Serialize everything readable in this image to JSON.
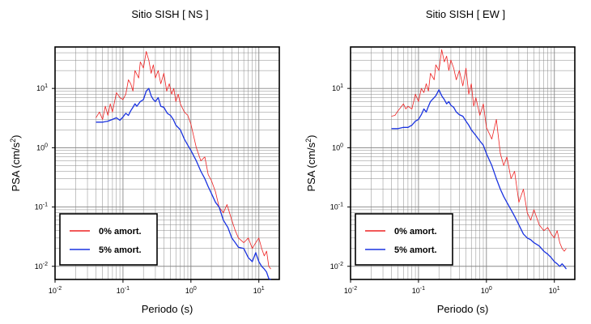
{
  "colors": {
    "zero_damping": "#ee2222",
    "five_damping": "#1a33e0",
    "grid": "#888888",
    "frame": "#000000"
  },
  "chart_data": [
    {
      "type": "line",
      "title": "Sitio SISH [ NS ]",
      "xlabel": "Periodo (s)",
      "ylabel_main": "PSA (cm/s",
      "ylabel_sup": "2",
      "ylabel_end": ")",
      "xscale": "log",
      "yscale": "log",
      "xlim": [
        0.01,
        20
      ],
      "ylim": [
        0.006,
        50
      ],
      "grid": true,
      "xticks": [
        {
          "base": "10",
          "exp": "-2",
          "value": 0.01
        },
        {
          "base": "10",
          "exp": "-1",
          "value": 0.1
        },
        {
          "base": "10",
          "exp": "0",
          "value": 1
        },
        {
          "base": "10",
          "exp": "1",
          "value": 10
        }
      ],
      "yticks": [
        {
          "base": "10",
          "exp": "-2",
          "value": 0.01
        },
        {
          "base": "10",
          "exp": "-1",
          "value": 0.1
        },
        {
          "base": "10",
          "exp": "0",
          "value": 1
        },
        {
          "base": "10",
          "exp": "1",
          "value": 10
        }
      ],
      "legend_position": "bottom-left",
      "series": [
        {
          "name": "0% amort.",
          "color": "#ee2222",
          "x": [
            0.04,
            0.045,
            0.05,
            0.055,
            0.06,
            0.065,
            0.07,
            0.08,
            0.09,
            0.1,
            0.11,
            0.12,
            0.13,
            0.14,
            0.15,
            0.17,
            0.18,
            0.2,
            0.22,
            0.24,
            0.26,
            0.28,
            0.3,
            0.33,
            0.36,
            0.4,
            0.44,
            0.48,
            0.52,
            0.56,
            0.6,
            0.65,
            0.7,
            0.8,
            0.9,
            1.0,
            1.2,
            1.4,
            1.6,
            1.8,
            2.0,
            2.3,
            2.6,
            3.0,
            3.4,
            4.0,
            4.5,
            5.0,
            6.0,
            7.0,
            8.0,
            9.0,
            10.0,
            11.0,
            12.0,
            13.0,
            14.0,
            15.0
          ],
          "y": [
            3.2,
            4.0,
            3.0,
            5.0,
            3.5,
            5.5,
            4.0,
            8.5,
            7.0,
            6.5,
            8.0,
            14.0,
            12.0,
            9.0,
            20.0,
            15.0,
            28.0,
            22.0,
            42.0,
            30.0,
            18.0,
            25.0,
            15.0,
            20.0,
            12.0,
            18.0,
            9.0,
            12.0,
            8.0,
            10.0,
            6.0,
            8.0,
            5.5,
            4.0,
            3.5,
            2.5,
            1.0,
            0.6,
            0.7,
            0.35,
            0.28,
            0.18,
            0.1,
            0.08,
            0.11,
            0.06,
            0.04,
            0.03,
            0.025,
            0.03,
            0.02,
            0.025,
            0.03,
            0.02,
            0.015,
            0.018,
            0.01,
            0.009
          ]
        },
        {
          "name": "5% amort.",
          "color": "#1a33e0",
          "x": [
            0.04,
            0.05,
            0.06,
            0.07,
            0.08,
            0.09,
            0.1,
            0.11,
            0.12,
            0.13,
            0.14,
            0.15,
            0.16,
            0.18,
            0.2,
            0.22,
            0.24,
            0.26,
            0.28,
            0.3,
            0.33,
            0.36,
            0.4,
            0.45,
            0.5,
            0.55,
            0.6,
            0.7,
            0.8,
            0.9,
            1.0,
            1.2,
            1.4,
            1.6,
            1.8,
            2.0,
            2.3,
            2.6,
            3.0,
            3.5,
            4.0,
            4.5,
            5.0,
            6.0,
            7.0,
            8.0,
            9.0,
            10.0,
            11.0,
            12.0,
            13.0,
            14.0,
            15.0
          ],
          "y": [
            2.7,
            2.7,
            2.8,
            3.0,
            3.2,
            2.9,
            3.3,
            3.8,
            3.5,
            4.2,
            4.8,
            5.5,
            5.0,
            6.0,
            6.5,
            9.0,
            10.0,
            7.5,
            6.5,
            6.0,
            7.0,
            5.0,
            4.8,
            3.8,
            3.5,
            3.0,
            2.4,
            2.0,
            1.4,
            1.1,
            0.9,
            0.6,
            0.4,
            0.3,
            0.22,
            0.17,
            0.12,
            0.1,
            0.06,
            0.045,
            0.03,
            0.025,
            0.021,
            0.02,
            0.014,
            0.012,
            0.017,
            0.012,
            0.01,
            0.009,
            0.008,
            0.0062,
            0.006
          ]
        }
      ]
    },
    {
      "type": "line",
      "title": "Sitio SISH [ EW ]",
      "xlabel": "Periodo (s)",
      "ylabel_main": "PSA (cm/s",
      "ylabel_sup": "2",
      "ylabel_end": ")",
      "xscale": "log",
      "yscale": "log",
      "xlim": [
        0.01,
        20
      ],
      "ylim": [
        0.006,
        50
      ],
      "grid": true,
      "xticks": [
        {
          "base": "10",
          "exp": "-2",
          "value": 0.01
        },
        {
          "base": "10",
          "exp": "-1",
          "value": 0.1
        },
        {
          "base": "10",
          "exp": "0",
          "value": 1
        },
        {
          "base": "10",
          "exp": "1",
          "value": 10
        }
      ],
      "yticks": [
        {
          "base": "10",
          "exp": "-2",
          "value": 0.01
        },
        {
          "base": "10",
          "exp": "-1",
          "value": 0.1
        },
        {
          "base": "10",
          "exp": "0",
          "value": 1
        },
        {
          "base": "10",
          "exp": "1",
          "value": 10
        }
      ],
      "legend_position": "bottom-left",
      "series": [
        {
          "name": "0% amort.",
          "color": "#ee2222",
          "x": [
            0.04,
            0.045,
            0.05,
            0.06,
            0.065,
            0.07,
            0.08,
            0.09,
            0.1,
            0.11,
            0.12,
            0.13,
            0.14,
            0.15,
            0.17,
            0.18,
            0.2,
            0.22,
            0.24,
            0.26,
            0.28,
            0.3,
            0.33,
            0.36,
            0.4,
            0.45,
            0.5,
            0.55,
            0.6,
            0.65,
            0.7,
            0.8,
            0.9,
            1.0,
            1.2,
            1.4,
            1.6,
            1.8,
            2.0,
            2.3,
            2.6,
            3.0,
            3.5,
            4.0,
            4.5,
            5.0,
            6.0,
            7.0,
            8.0,
            9.0,
            10.0,
            11.0,
            12.0,
            13.0,
            14.0,
            15.0
          ],
          "y": [
            3.4,
            3.5,
            4.2,
            5.5,
            4.5,
            5.0,
            4.5,
            8.0,
            6.0,
            10.0,
            8.5,
            12.0,
            9.0,
            18.0,
            14.0,
            25.0,
            20.0,
            45.0,
            28.0,
            35.0,
            20.0,
            30.0,
            22.0,
            14.0,
            20.0,
            11.0,
            22.0,
            8.0,
            12.0,
            5.0,
            7.0,
            3.5,
            5.5,
            2.2,
            1.4,
            3.0,
            0.8,
            0.5,
            0.7,
            0.3,
            0.4,
            0.12,
            0.2,
            0.08,
            0.06,
            0.09,
            0.05,
            0.04,
            0.045,
            0.035,
            0.03,
            0.04,
            0.025,
            0.02,
            0.018,
            0.02
          ]
        },
        {
          "name": "5% amort.",
          "color": "#1a33e0",
          "x": [
            0.04,
            0.05,
            0.06,
            0.07,
            0.08,
            0.09,
            0.1,
            0.11,
            0.12,
            0.13,
            0.14,
            0.15,
            0.16,
            0.18,
            0.2,
            0.22,
            0.24,
            0.26,
            0.28,
            0.3,
            0.33,
            0.36,
            0.4,
            0.45,
            0.5,
            0.55,
            0.6,
            0.7,
            0.8,
            0.9,
            1.0,
            1.2,
            1.4,
            1.6,
            1.8,
            2.0,
            2.3,
            2.6,
            3.0,
            3.5,
            4.0,
            4.5,
            5.0,
            6.0,
            7.0,
            8.0,
            9.0,
            10.0,
            11.0,
            12.0,
            13.0,
            14.0,
            15.0
          ],
          "y": [
            2.1,
            2.1,
            2.2,
            2.2,
            2.4,
            2.8,
            3.0,
            3.6,
            4.5,
            4.0,
            5.0,
            6.0,
            6.5,
            7.5,
            9.5,
            7.5,
            6.5,
            5.5,
            6.0,
            5.2,
            4.8,
            4.0,
            3.6,
            3.4,
            2.8,
            2.4,
            2.0,
            1.6,
            1.3,
            1.1,
            0.8,
            0.5,
            0.3,
            0.2,
            0.15,
            0.12,
            0.09,
            0.07,
            0.05,
            0.035,
            0.03,
            0.028,
            0.025,
            0.022,
            0.018,
            0.016,
            0.014,
            0.012,
            0.011,
            0.01,
            0.011,
            0.01,
            0.009
          ]
        }
      ]
    }
  ]
}
